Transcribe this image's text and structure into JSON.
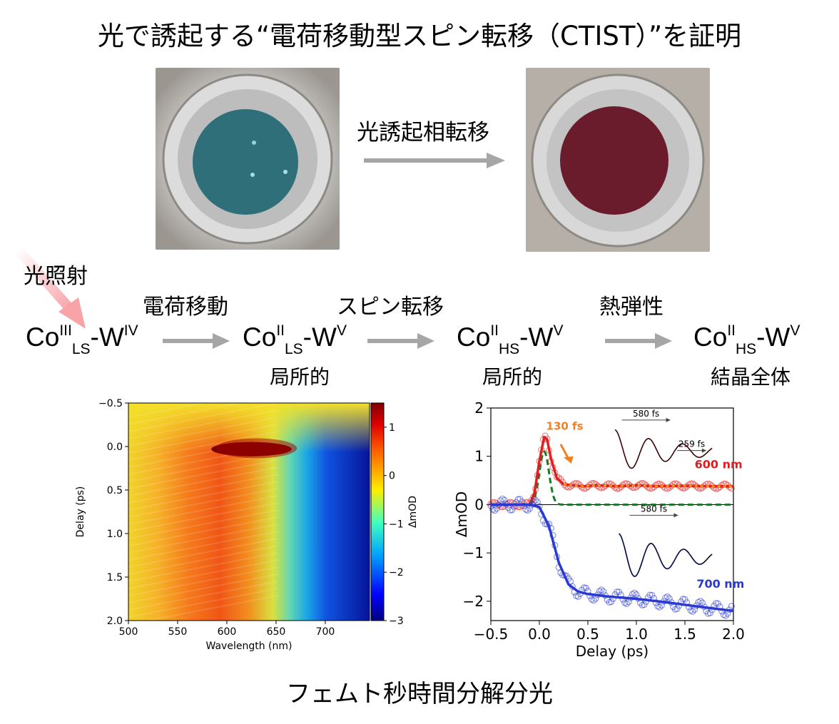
{
  "title": "光で誘起する“電荷移動型スピン転移（CTIST）”を証明",
  "photos": {
    "arrow_label": "光誘起相転移",
    "before_color": "#2f6f7a",
    "after_color": "#6a1c2c"
  },
  "scheme": {
    "light_label": "光照射",
    "states": [
      {
        "element1": "Co",
        "ox1": "III",
        "spin": "LS",
        "dash": "-",
        "element2": "W",
        "ox2": "IV",
        "note": ""
      },
      {
        "element1": "Co",
        "ox1": "II",
        "spin": "LS",
        "dash": "-",
        "element2": "W",
        "ox2": "V",
        "note": "局所的"
      },
      {
        "element1": "Co",
        "ox1": "II",
        "spin": "HS",
        "dash": "-",
        "element2": "W",
        "ox2": "V",
        "note": "局所的"
      },
      {
        "element1": "Co",
        "ox1": "II",
        "spin": "HS",
        "dash": "-",
        "element2": "W",
        "ox2": "V",
        "note": "結晶全体"
      }
    ],
    "steps": [
      "電荷移動",
      "スピン転移",
      "熱弾性"
    ]
  },
  "chart_data": [
    {
      "type": "heatmap",
      "xlabel": "Wavelength (nm)",
      "ylabel": "Delay (ps)",
      "xlim": [
        500,
        745
      ],
      "ylim": [
        -0.5,
        2.0
      ],
      "xticks": [
        "500",
        "550",
        "600",
        "650",
        "700"
      ],
      "yticks": [
        "−0.5",
        "0.0",
        "0.5",
        "1.0",
        "1.5",
        "2.0"
      ],
      "colorbar": {
        "label": "ΔmOD",
        "range": [
          -3,
          1.5
        ],
        "ticks": [
          "1",
          "0",
          "−1",
          "−2",
          "−3"
        ]
      }
    },
    {
      "type": "line",
      "xlabel": "Delay (ps)",
      "ylabel": "ΔmOD",
      "xlim": [
        -0.5,
        2.0
      ],
      "ylim": [
        -2.4,
        2.0
      ],
      "xticks": [
        "−0.5",
        "0.0",
        "0.5",
        "1.0",
        "1.5",
        "2.0"
      ],
      "yticks": [
        "2",
        "1",
        "0",
        "−1",
        "−2"
      ],
      "series": [
        {
          "name": "600 nm",
          "color": "#e02020",
          "x": [
            -0.5,
            -0.1,
            -0.05,
            0.0,
            0.05,
            0.08,
            0.12,
            0.18,
            0.25,
            0.35,
            0.45,
            0.6,
            0.8,
            1.0,
            1.2,
            1.5,
            1.8,
            2.0
          ],
          "y": [
            0.0,
            0.0,
            0.25,
            0.9,
            1.4,
            1.35,
            0.95,
            0.55,
            0.42,
            0.4,
            0.38,
            0.4,
            0.38,
            0.4,
            0.38,
            0.39,
            0.38,
            0.38
          ]
        },
        {
          "name": "700 nm",
          "color": "#2a3ad0",
          "x": [
            -0.5,
            -0.1,
            0.0,
            0.1,
            0.2,
            0.3,
            0.4,
            0.5,
            0.7,
            1.0,
            1.3,
            1.6,
            1.8,
            2.0
          ],
          "y": [
            0.0,
            0.0,
            -0.05,
            -0.45,
            -1.2,
            -1.65,
            -1.8,
            -1.85,
            -1.9,
            -1.95,
            -2.02,
            -2.1,
            -2.15,
            -2.2
          ]
        }
      ],
      "annotations": [
        "130 fs",
        "580 fs",
        "259 fs",
        "580 fs"
      ]
    }
  ],
  "bottom_title": "フェムト秒時間分解分光"
}
